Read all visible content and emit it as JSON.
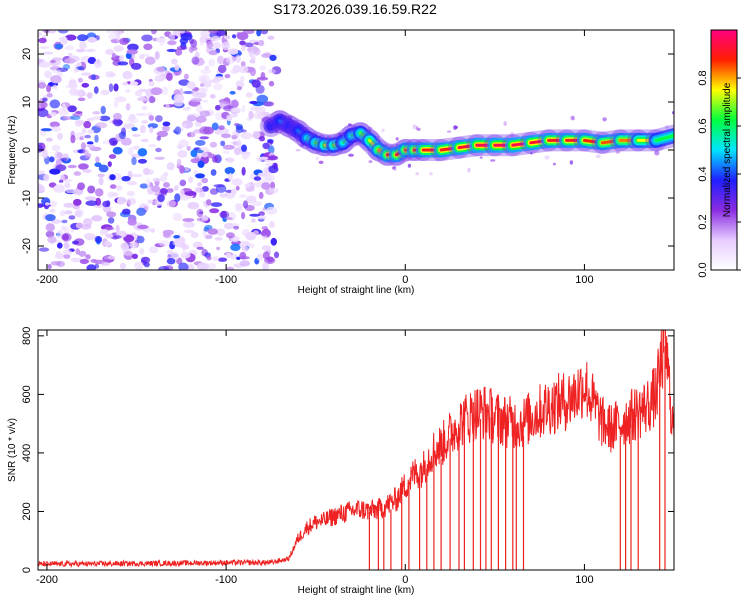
{
  "title": "S173.2026.039.16.59.R22",
  "chart_data": [
    {
      "type": "heatmap",
      "name": "spectrogram",
      "xlabel": "Height of straight line (km)",
      "ylabel": "Frequency (Hz)",
      "xlim": [
        -205,
        150
      ],
      "ylim": [
        -25,
        25
      ],
      "xticks": [
        -200,
        -100,
        0,
        100
      ],
      "yticks": [
        -20,
        -10,
        0,
        10,
        20
      ],
      "colorbar": {
        "label": "Normalized spectral amplitude",
        "range": [
          0,
          1
        ],
        "ticks": [
          "0.0",
          "0.2",
          "0.4",
          "0.6",
          "0.8"
        ],
        "tick_values": [
          0.0,
          0.2,
          0.4,
          0.6,
          0.8
        ],
        "colors": [
          "#ffffff",
          "#e6ccff",
          "#8a2be2",
          "#2020ff",
          "#00e5ff",
          "#00ff40",
          "#ffff00",
          "#ff2000",
          "#ff0080"
        ]
      },
      "noise_region_x": [
        -205,
        -74
      ],
      "ridge": {
        "x": [
          -75,
          -70,
          -65,
          -60,
          -55,
          -50,
          -45,
          -40,
          -35,
          -30,
          -25,
          -20,
          -15,
          -10,
          -5,
          0,
          5,
          10,
          20,
          30,
          40,
          50,
          60,
          70,
          80,
          90,
          100,
          110,
          120,
          130,
          140,
          150
        ],
        "freq": [
          5,
          6,
          5,
          4,
          2.5,
          1.5,
          1,
          1,
          1.5,
          3,
          3.5,
          2,
          0,
          -1,
          -1,
          0,
          0,
          0,
          0,
          0.5,
          1,
          1,
          1,
          1.5,
          2,
          2,
          2,
          1.5,
          2,
          2,
          2,
          3
        ],
        "amplitude": [
          0.3,
          0.45,
          0.4,
          0.35,
          0.5,
          0.6,
          0.7,
          0.75,
          0.6,
          0.55,
          0.6,
          0.7,
          0.75,
          0.85,
          0.9,
          0.85,
          0.85,
          0.9,
          0.9,
          0.9,
          0.95,
          0.95,
          0.95,
          0.95,
          0.9,
          0.9,
          0.9,
          0.85,
          0.85,
          0.8,
          0.7,
          0.55
        ]
      }
    },
    {
      "type": "line",
      "name": "snr",
      "xlabel": "Height of straight line (km)",
      "ylabel": "SNR (10 * v/v)",
      "xlim": [
        -205,
        150
      ],
      "ylim": [
        0,
        820
      ],
      "xticks": [
        -200,
        -100,
        0,
        100
      ],
      "yticks": [
        0,
        200,
        400,
        600,
        800
      ],
      "color": "#ee2222",
      "envelope": {
        "x": [
          -205,
          -150,
          -100,
          -75,
          -65,
          -60,
          -55,
          -50,
          -45,
          -40,
          -35,
          -30,
          -25,
          -20,
          -15,
          -10,
          -5,
          0,
          5,
          10,
          15,
          20,
          25,
          30,
          35,
          40,
          45,
          50,
          55,
          60,
          65,
          70,
          75,
          80,
          85,
          90,
          95,
          100,
          105,
          110,
          115,
          120,
          125,
          130,
          135,
          140,
          145,
          148,
          150
        ],
        "snr": [
          20,
          22,
          25,
          25,
          40,
          110,
          150,
          170,
          175,
          190,
          200,
          210,
          215,
          210,
          215,
          230,
          250,
          300,
          340,
          360,
          420,
          440,
          480,
          520,
          540,
          560,
          560,
          540,
          530,
          520,
          520,
          540,
          560,
          580,
          590,
          600,
          620,
          660,
          590,
          520,
          500,
          520,
          540,
          560,
          580,
          620,
          820,
          600,
          480
        ]
      },
      "dropouts_x": [
        -20,
        -15,
        -12,
        -8,
        -2,
        2,
        8,
        12,
        16,
        20,
        25,
        30,
        33,
        38,
        42,
        45,
        48,
        52,
        56,
        60,
        62,
        66,
        120,
        123,
        126,
        130,
        142,
        145
      ]
    }
  ]
}
